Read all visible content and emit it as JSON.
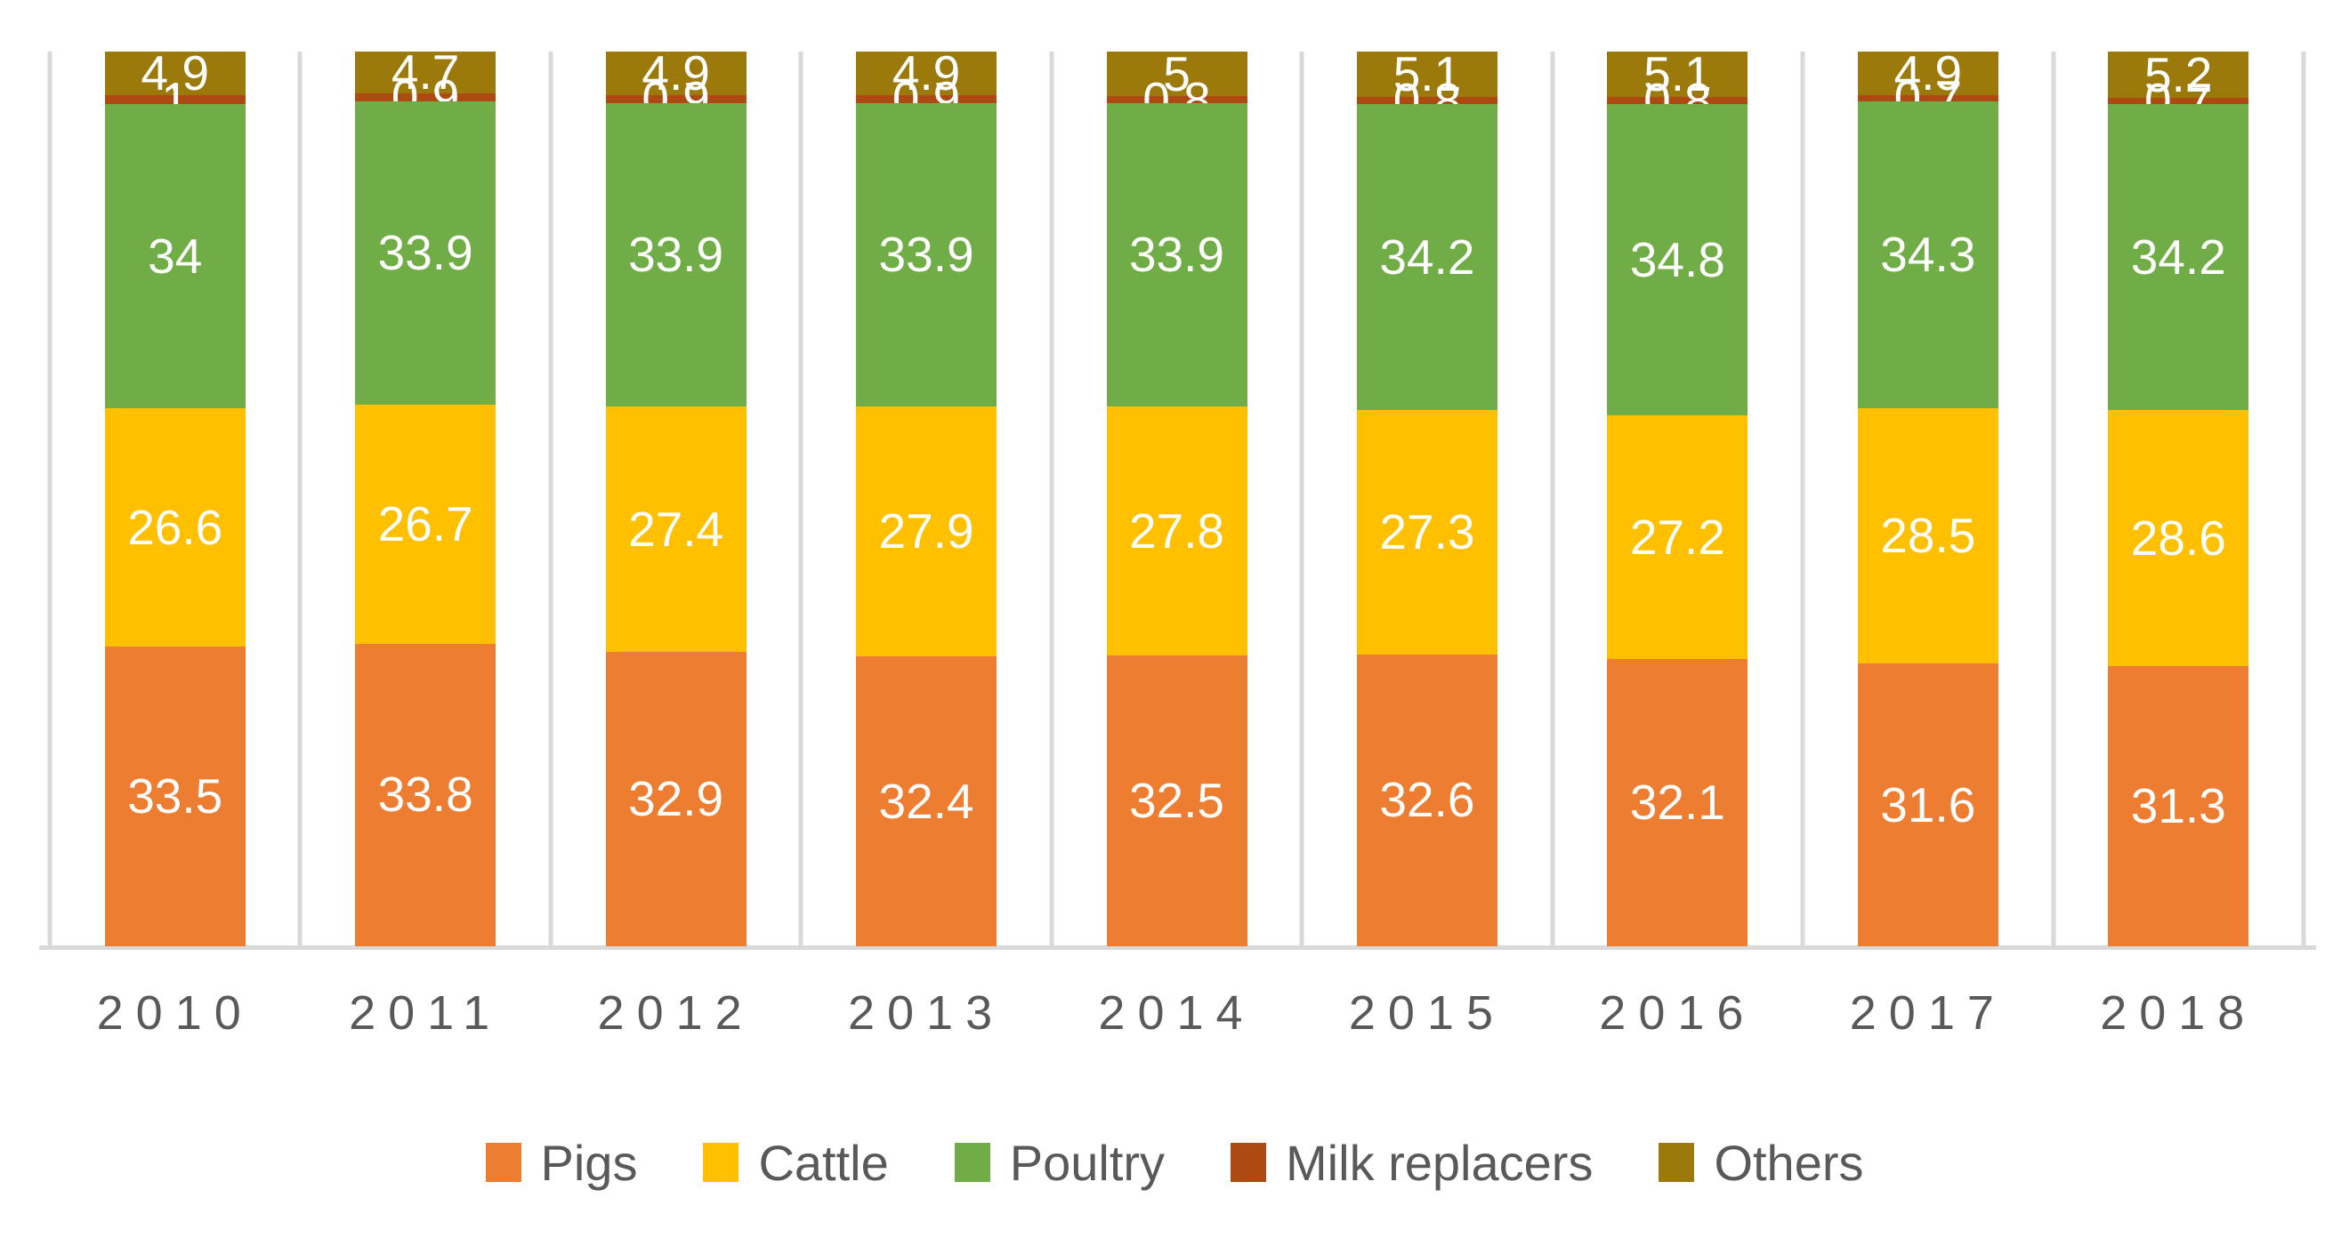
{
  "chart_data": {
    "type": "bar",
    "stacked": true,
    "unit": "percent",
    "title": "",
    "xlabel": "",
    "ylabel": "",
    "ylim": [
      0,
      100
    ],
    "grid": "vertical category boundary lines only",
    "legend_position": "bottom",
    "categories": [
      "2010",
      "2011",
      "2012",
      "2013",
      "2014",
      "2015",
      "2016",
      "2017",
      "2018"
    ],
    "series": [
      {
        "name": "Pigs",
        "color": "#ED7D31",
        "values": [
          33.5,
          33.8,
          32.9,
          32.4,
          32.5,
          32.6,
          32.1,
          31.6,
          31.3
        ]
      },
      {
        "name": "Cattle",
        "color": "#FFC000",
        "values": [
          26.6,
          26.7,
          27.4,
          27.9,
          27.8,
          27.3,
          27.2,
          28.5,
          28.6
        ]
      },
      {
        "name": "Poultry",
        "color": "#70AD47",
        "values": [
          34,
          33.9,
          33.9,
          33.9,
          33.9,
          34.2,
          34.8,
          34.3,
          34.2
        ]
      },
      {
        "name": "Milk replacers",
        "color": "#AC4A12",
        "values": [
          1,
          0.9,
          0.9,
          0.9,
          0.8,
          0.8,
          0.8,
          0.7,
          0.7
        ]
      },
      {
        "name": "Others",
        "color": "#9B7A0B",
        "values": [
          4.9,
          4.7,
          4.9,
          4.9,
          5,
          5.1,
          5.1,
          4.9,
          5.2
        ]
      }
    ],
    "data_label_color": "#FFFFFF",
    "axis_line_color": "#D9D9D9",
    "tick_label_color": "#595959"
  },
  "legend": {
    "items": [
      "Pigs",
      "Cattle",
      "Poultry",
      "Milk replacers",
      "Others"
    ]
  }
}
